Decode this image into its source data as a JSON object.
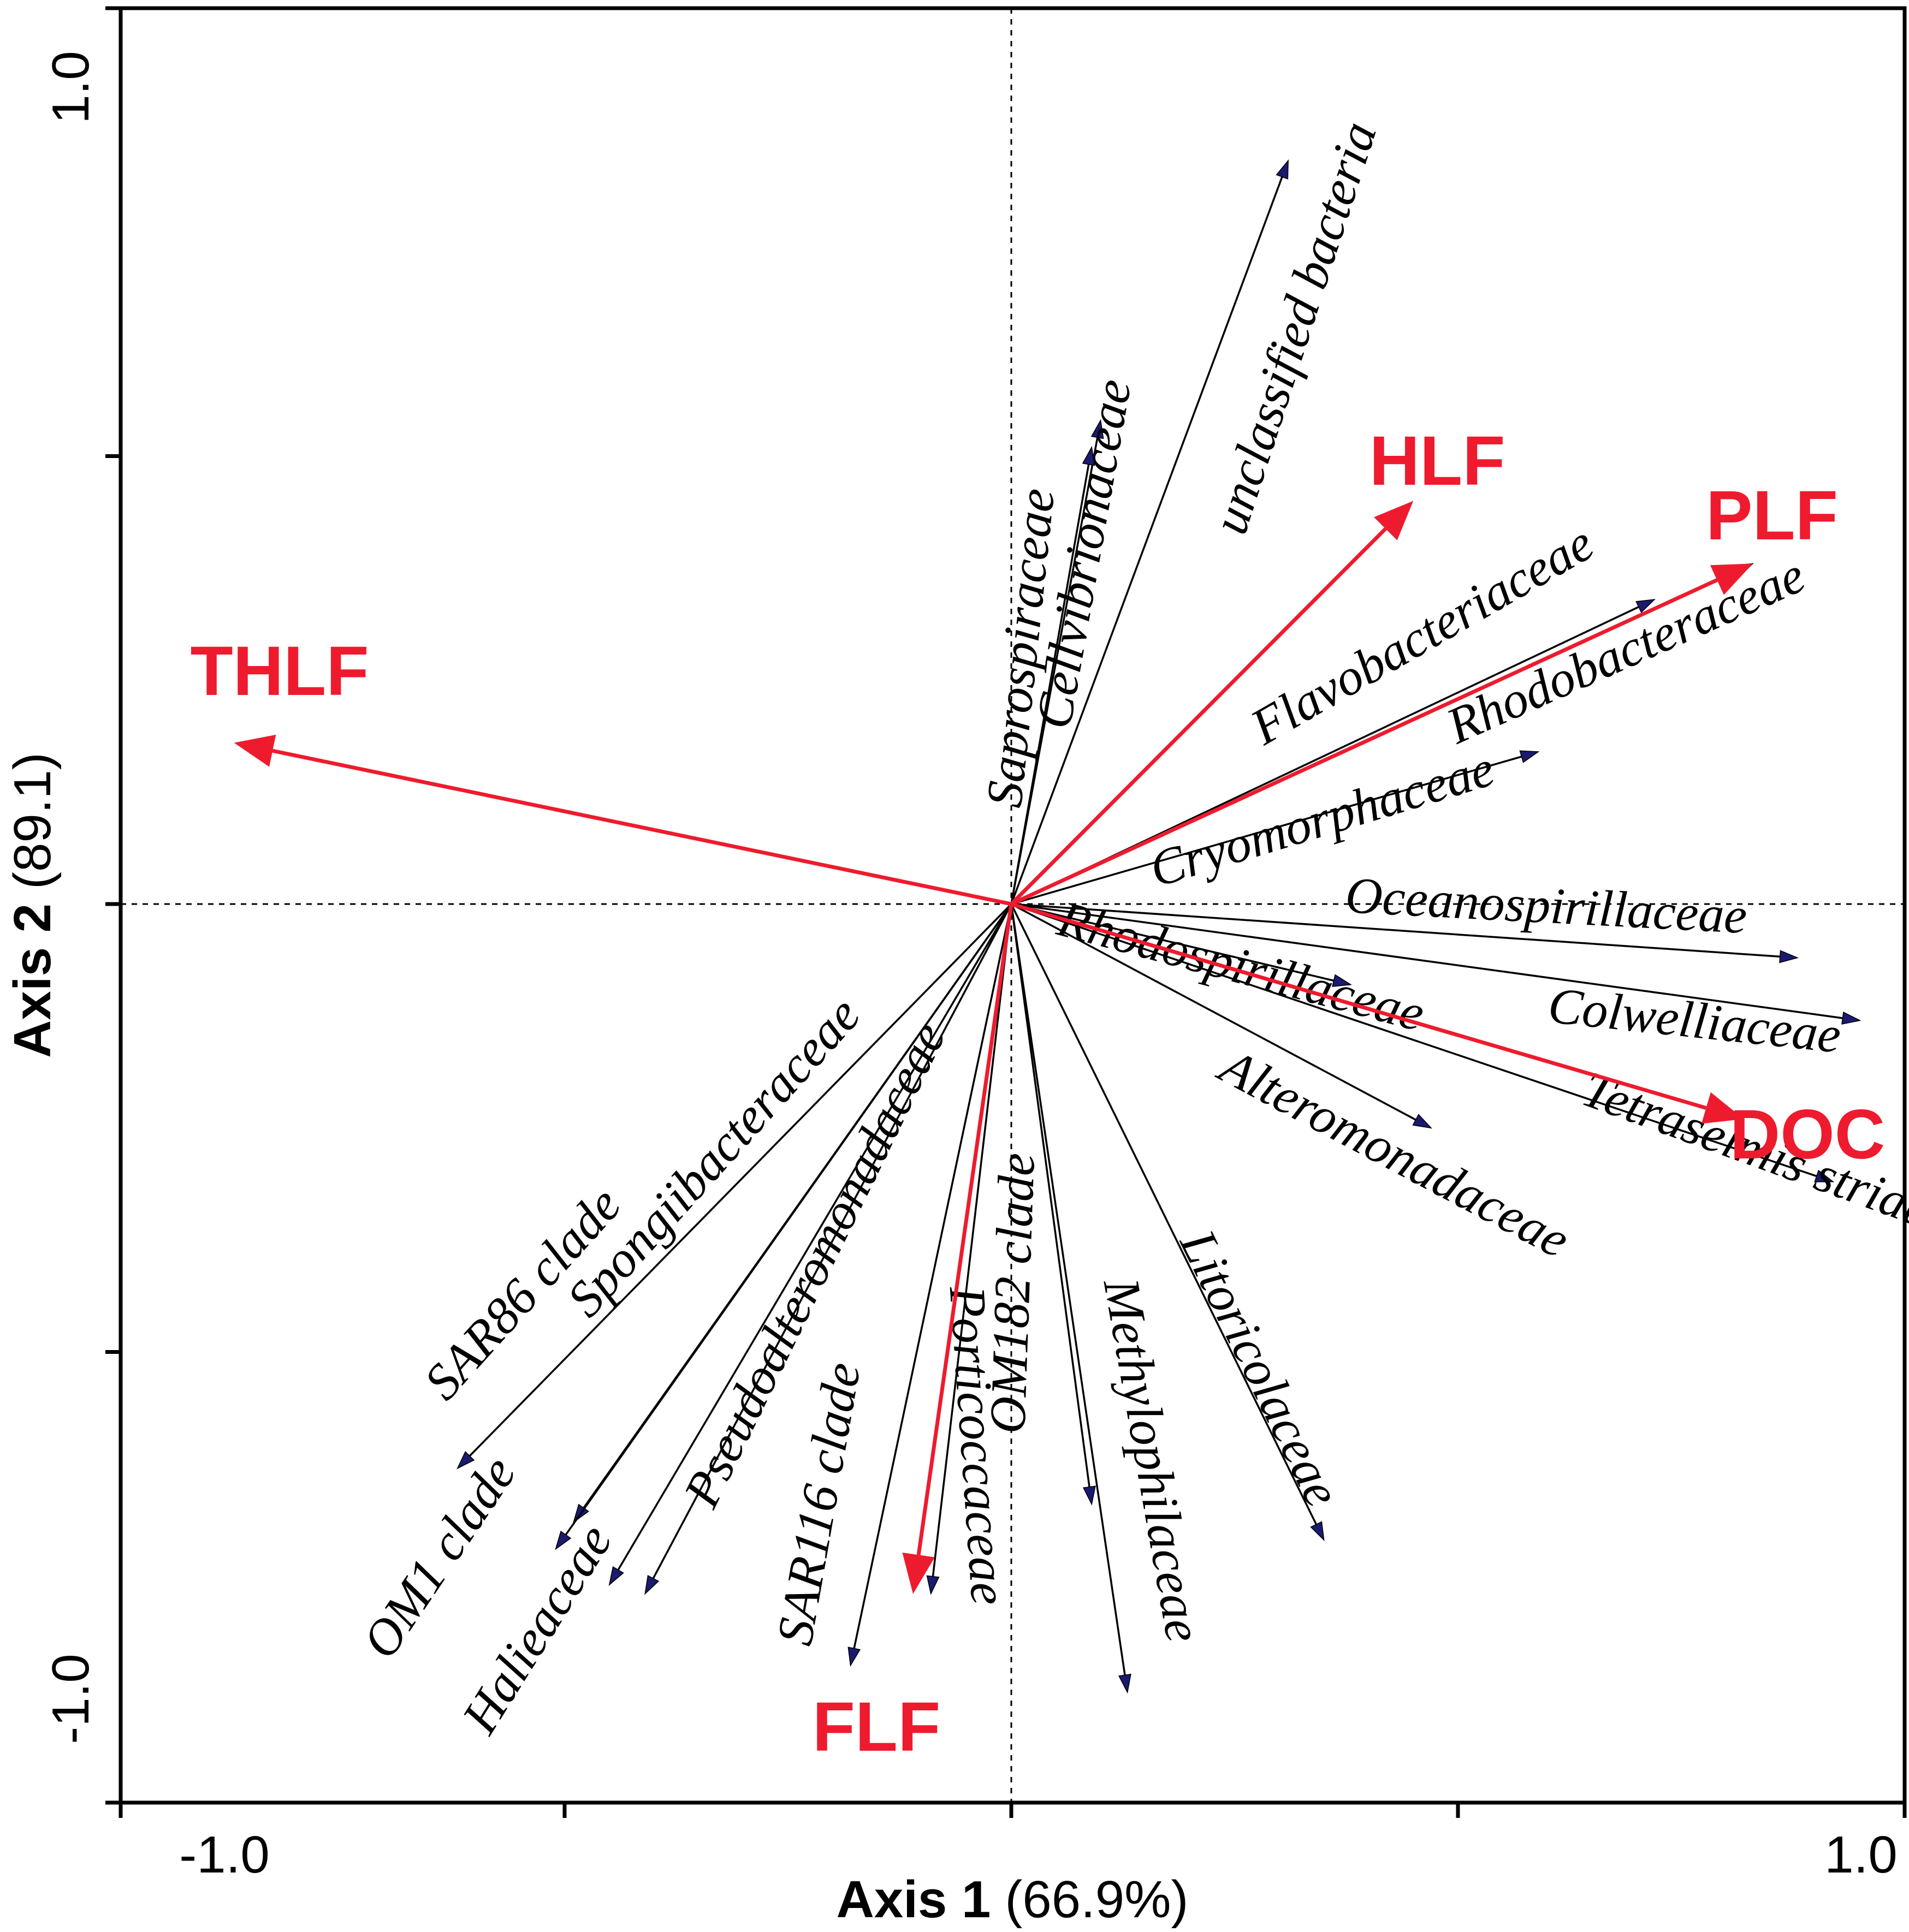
{
  "chart_data": {
    "type": "biplot",
    "xlabel_bold": "Axis 1",
    "xlabel_pct": "(66.9%)",
    "ylabel_bold": "Axis 2",
    "ylabel_pct": "(89.1)",
    "xlim": [
      -1.0,
      1.0
    ],
    "ylim": [
      -1.0,
      1.0
    ],
    "x_tick_labels": [
      {
        "value": -1.0,
        "label": "-1.0"
      },
      {
        "value": 1.0,
        "label": "1.0"
      }
    ],
    "y_tick_labels": [
      {
        "value": 1.0,
        "label": "1.0"
      },
      {
        "value": -1.0,
        "label": "-1.0"
      }
    ],
    "x_ticks": [
      -1.0,
      -0.5,
      0.0,
      0.5,
      1.0
    ],
    "y_ticks": [
      1.0,
      0.5,
      0.0,
      -0.5,
      -1.0
    ],
    "env_color": "#ee1b2e",
    "species_color": "#000000",
    "arrowhead_color": "#1a1a6e",
    "environmental_vectors": [
      {
        "name": "THLF",
        "x": -0.87,
        "y": 0.18
      },
      {
        "name": "HLF",
        "x": 0.45,
        "y": 0.45
      },
      {
        "name": "PLF",
        "x": 0.83,
        "y": 0.38
      },
      {
        "name": "DOC",
        "x": 0.82,
        "y": -0.24
      },
      {
        "name": "FLF",
        "x": -0.11,
        "y": -0.77
      }
    ],
    "species_vectors": [
      {
        "name": "unclassified bacteria",
        "x": 0.31,
        "y": 0.83
      },
      {
        "name": "Cellvibrionaceae",
        "x": 0.1,
        "y": 0.54
      },
      {
        "name": "Saprospiraceae",
        "x": 0.09,
        "y": 0.51
      },
      {
        "name": "Flavobacteriaceae",
        "x": 0.72,
        "y": 0.34
      },
      {
        "name": "Rhodobacteraceae",
        "x": 0.83,
        "y": 0.38
      },
      {
        "name": "Cryomorphaceae",
        "x": 0.59,
        "y": 0.17
      },
      {
        "name": "Oceanospirillaceae",
        "x": 0.88,
        "y": -0.06
      },
      {
        "name": "Colwelliaceae",
        "x": 0.95,
        "y": -0.13
      },
      {
        "name": "Rhodospirillaceae",
        "x": 0.38,
        "y": -0.09
      },
      {
        "name": "Tetraselmis striata",
        "x": 0.92,
        "y": -0.31
      },
      {
        "name": "Alteromonadaceae",
        "x": 0.47,
        "y": -0.25
      },
      {
        "name": "Litoricolaceae",
        "x": 0.35,
        "y": -0.71
      },
      {
        "name": "Methylophilaceae",
        "x": 0.13,
        "y": -0.88
      },
      {
        "name": "OM182 clade",
        "x": 0.09,
        "y": -0.67
      },
      {
        "name": "Porticoccaceae",
        "x": -0.09,
        "y": -0.77
      },
      {
        "name": "SAR116 clade",
        "x": -0.18,
        "y": -0.85
      },
      {
        "name": "Pseudoalteromonadaceae",
        "x": -0.45,
        "y": -0.76
      },
      {
        "name": "Halieaceae",
        "x": -0.41,
        "y": -0.77
      },
      {
        "name": "Spongiibacteraceae",
        "x": -0.49,
        "y": -0.69
      },
      {
        "name": "OM1 clade",
        "x": -0.51,
        "y": -0.72
      },
      {
        "name": "SAR86 clade",
        "x": -0.62,
        "y": -0.63
      }
    ]
  }
}
